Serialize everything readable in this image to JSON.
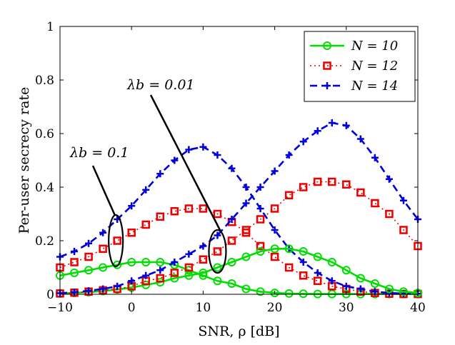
{
  "chart_data": {
    "type": "line",
    "title": "",
    "xlabel": "SNR, ρ [dB]",
    "ylabel": "Per-user secrecy rate",
    "xlim": [
      -10,
      40
    ],
    "ylim": [
      0,
      1
    ],
    "xticks": [
      -10,
      0,
      10,
      20,
      30,
      40
    ],
    "xtick_labels": [
      "−10",
      "0",
      "10",
      "20",
      "30",
      "40"
    ],
    "yticks": [
      0,
      0.2,
      0.4,
      0.6,
      0.8,
      1
    ],
    "ytick_labels": [
      "0",
      "0.2",
      "0.4",
      "0.6",
      "0.8",
      "1"
    ],
    "x": [
      -10,
      -8,
      -6,
      -4,
      -2,
      0,
      2,
      4,
      6,
      8,
      10,
      12,
      14,
      16,
      18,
      20,
      22,
      24,
      26,
      28,
      30,
      32,
      34,
      36,
      38,
      40
    ],
    "legend_position": "top-right",
    "series": [
      {
        "name": "N = 10",
        "group": "λb = 0.1",
        "color": "#00dd00",
        "marker": "circle",
        "dash": "solid",
        "values": [
          0.07,
          0.08,
          0.09,
          0.1,
          0.11,
          0.12,
          0.12,
          0.12,
          0.11,
          0.09,
          0.07,
          0.05,
          0.04,
          0.02,
          0.01,
          0.005,
          0.003,
          0.002,
          0.001,
          0.001,
          0.001,
          0.001,
          0.001,
          0.001,
          0.001,
          0.001
        ]
      },
      {
        "name": "N = 12",
        "group": "λb = 0.1",
        "color": "#ee0000",
        "marker": "square",
        "dash": "dotted",
        "values": [
          0.1,
          0.12,
          0.14,
          0.17,
          0.2,
          0.23,
          0.26,
          0.29,
          0.31,
          0.32,
          0.32,
          0.3,
          0.27,
          0.23,
          0.18,
          0.14,
          0.1,
          0.07,
          0.05,
          0.03,
          0.02,
          0.01,
          0.005,
          0.002,
          0.001,
          0.001
        ]
      },
      {
        "name": "N = 14",
        "group": "λb = 0.1",
        "color": "#0000dd",
        "marker": "plus",
        "dash": "dashed",
        "values": [
          0.14,
          0.16,
          0.19,
          0.23,
          0.28,
          0.33,
          0.39,
          0.45,
          0.5,
          0.54,
          0.55,
          0.52,
          0.47,
          0.4,
          0.32,
          0.24,
          0.17,
          0.12,
          0.08,
          0.05,
          0.03,
          0.02,
          0.01,
          0.005,
          0.003,
          0.002
        ]
      },
      {
        "name": "N = 10",
        "group": "λb = 0.01",
        "color": "#00dd00",
        "marker": "circle",
        "dash": "solid",
        "values": [
          0.003,
          0.005,
          0.008,
          0.012,
          0.018,
          0.025,
          0.035,
          0.045,
          0.06,
          0.07,
          0.08,
          0.1,
          0.12,
          0.14,
          0.16,
          0.17,
          0.17,
          0.16,
          0.14,
          0.12,
          0.09,
          0.06,
          0.04,
          0.02,
          0.01,
          0.005
        ]
      },
      {
        "name": "N = 12",
        "group": "λb = 0.01",
        "color": "#ee0000",
        "marker": "square",
        "dash": "dotted",
        "values": [
          0.003,
          0.006,
          0.01,
          0.015,
          0.02,
          0.03,
          0.05,
          0.06,
          0.08,
          0.1,
          0.13,
          0.16,
          0.2,
          0.24,
          0.28,
          0.32,
          0.37,
          0.4,
          0.42,
          0.42,
          0.41,
          0.38,
          0.34,
          0.3,
          0.24,
          0.18
        ]
      },
      {
        "name": "N = 14",
        "group": "λb = 0.01",
        "color": "#0000dd",
        "marker": "plus",
        "dash": "dashed",
        "values": [
          0.004,
          0.008,
          0.013,
          0.02,
          0.03,
          0.05,
          0.07,
          0.09,
          0.12,
          0.15,
          0.18,
          0.22,
          0.28,
          0.34,
          0.4,
          0.46,
          0.52,
          0.57,
          0.61,
          0.64,
          0.63,
          0.58,
          0.51,
          0.43,
          0.35,
          0.28
        ]
      }
    ],
    "legend": [
      {
        "label": "N = 10",
        "color": "#00dd00",
        "marker": "circle",
        "dash": "solid"
      },
      {
        "label": "N = 12",
        "color": "#ee0000",
        "marker": "square",
        "dash": "dotted"
      },
      {
        "label": "N = 14",
        "color": "#0000dd",
        "marker": "plus",
        "dash": "dashed"
      }
    ],
    "annotations": [
      {
        "text": "λb = 0.1",
        "points_to_group": "λb = 0.1"
      },
      {
        "text": "λb = 0.01",
        "points_to_group": "λb = 0.01"
      }
    ]
  }
}
